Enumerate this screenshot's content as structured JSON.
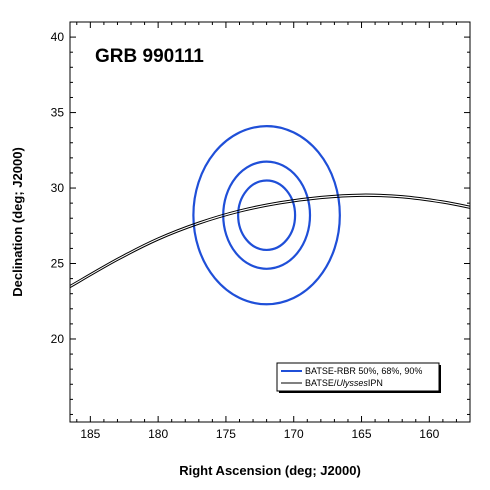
{
  "chart_data": {
    "type": "line",
    "title": "GRB 990111",
    "xlabel": "Right Ascension (deg; J2000)",
    "ylabel": "Declination (deg; J2000)",
    "xlim": [
      186.5,
      157
    ],
    "ylim": [
      14.5,
      41
    ],
    "x_ticks": [
      185,
      180,
      175,
      170,
      165,
      160
    ],
    "y_ticks": [
      20,
      25,
      30,
      35,
      40
    ],
    "grid": false,
    "legend_placement": "bottom-right",
    "colors": {
      "rbr": "#1f4fd8",
      "ipn": "#000000"
    },
    "contours": {
      "name": "BATSE-RBR 50%, 68%, 90%",
      "center": [
        172,
        28.2
      ],
      "levels": [
        {
          "rx": 2.1,
          "ry": 2.3
        },
        {
          "rx": 3.2,
          "ry": 3.55
        },
        {
          "rx": 5.4,
          "ry": 5.9
        }
      ]
    },
    "annulus": {
      "name": "BATSE/Ulysses IPN",
      "lines": [
        {
          "x": [
            186.5,
            183,
            180,
            177,
            174,
            171,
            168,
            165,
            162,
            159,
            157
          ],
          "y": [
            23.55,
            25.35,
            26.7,
            27.75,
            28.55,
            29.1,
            29.45,
            29.6,
            29.5,
            29.15,
            28.8
          ]
        },
        {
          "x": [
            186.5,
            183,
            180,
            177,
            174,
            171,
            168,
            165,
            162,
            159,
            157
          ],
          "y": [
            23.4,
            25.2,
            26.55,
            27.6,
            28.4,
            28.95,
            29.3,
            29.45,
            29.35,
            29.0,
            28.65
          ]
        }
      ]
    }
  },
  "legend": {
    "items": [
      {
        "label": "BATSE-RBR 50%, 68%, 90%"
      },
      {
        "label_prefix": "BATSE/",
        "label_italic": "Ulysses",
        "label_suffix": "IPN"
      }
    ]
  }
}
